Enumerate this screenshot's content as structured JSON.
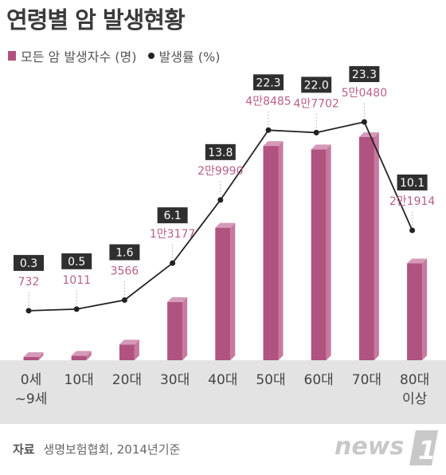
{
  "title": "연령별 암 발생현황",
  "legend": {
    "bars_label": "모든 암 발생자수 (명)",
    "line_label": "발생률 (%)"
  },
  "colors": {
    "bar_front": "#b0537f",
    "bar_side": "#c77aa0",
    "bar_top": "#d59ab8",
    "line": "#222222",
    "rate_box": "#2f2f2f",
    "count_text": "#b85f88",
    "axis_band": "#e3e3e3"
  },
  "chart_data": {
    "type": "bar",
    "title": "연령별 암 발생현황",
    "categories": [
      "0세 ~9세",
      "10대",
      "20대",
      "30대",
      "40대",
      "50대",
      "60대",
      "70대",
      "80대 이상"
    ],
    "category_lines": [
      [
        "0세",
        "~9세"
      ],
      [
        "10대"
      ],
      [
        "20대"
      ],
      [
        "30대"
      ],
      [
        "40대"
      ],
      [
        "50대"
      ],
      [
        "60대"
      ],
      [
        "70대"
      ],
      [
        "80대",
        "이상"
      ]
    ],
    "series": [
      {
        "name": "모든 암 발생자수 (명)",
        "type": "bar",
        "values": [
          732,
          1011,
          3566,
          13177,
          29990,
          48485,
          47702,
          50480,
          21914
        ],
        "labels": [
          "732",
          "1011",
          "3566",
          "1만3177",
          "2만9990",
          "4만8485",
          "4만7702",
          "5만0480",
          "2만1914"
        ]
      },
      {
        "name": "발생률 (%)",
        "type": "line",
        "values": [
          0.3,
          0.5,
          1.6,
          6.1,
          13.8,
          22.3,
          22.0,
          23.3,
          10.1
        ],
        "labels": [
          "0.3",
          "0.5",
          "1.6",
          "6.1",
          "13.8",
          "22.3",
          "22.0",
          "23.3",
          "10.1"
        ]
      }
    ],
    "legend_position": "top-left",
    "grid": false
  },
  "source": {
    "label": "자료",
    "text": "생명보험협회, 2014년기준"
  },
  "logo": {
    "text": "news",
    "mark": "1"
  }
}
